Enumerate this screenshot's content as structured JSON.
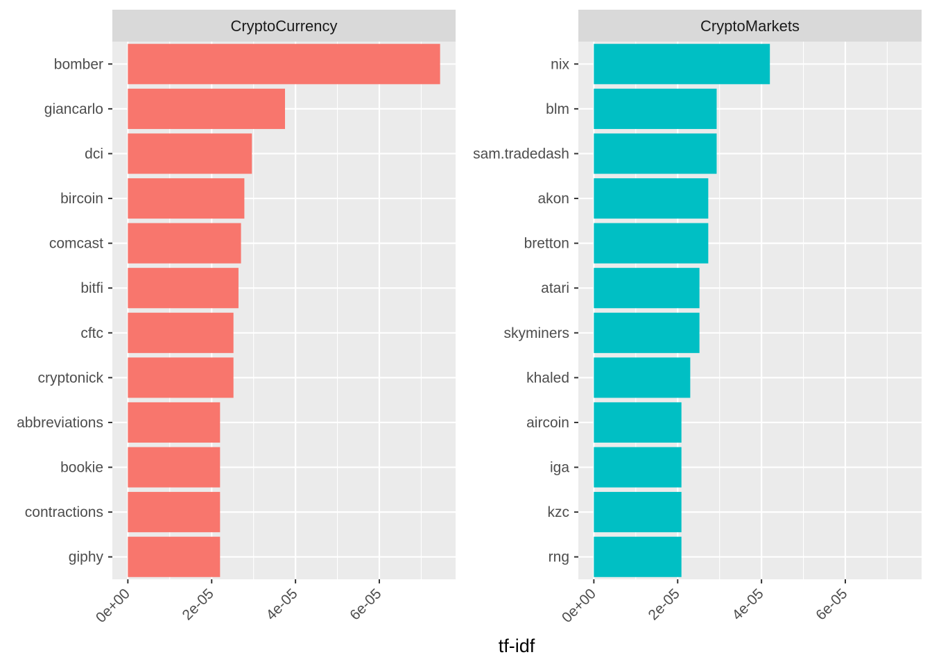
{
  "chart_data": {
    "type": "bar",
    "orientation": "horizontal",
    "xlabel": "tf-idf",
    "ylabel": "",
    "xlim": [
      -3.7e-06,
      7.82e-05
    ],
    "x_ticks": [
      {
        "value": 0,
        "label": "0e+00"
      },
      {
        "value": 2e-05,
        "label": "2e-05"
      },
      {
        "value": 4e-05,
        "label": "4e-05"
      },
      {
        "value": 6e-05,
        "label": "6e-05"
      }
    ],
    "grid": true,
    "legend": "none",
    "panels": [
      {
        "title": "CryptoCurrency",
        "color": "#F8766D",
        "categories": [
          "bomber",
          "giancarlo",
          "dci",
          "bircoin",
          "comcast",
          "bitfi",
          "cftc",
          "cryptonick",
          "abbreviations",
          "bookie",
          "contractions",
          "giphy"
        ],
        "values": [
          7.45e-05,
          3.75e-05,
          2.96e-05,
          2.78e-05,
          2.7e-05,
          2.64e-05,
          2.52e-05,
          2.52e-05,
          2.2e-05,
          2.2e-05,
          2.2e-05,
          2.2e-05
        ]
      },
      {
        "title": "CryptoMarkets",
        "color": "#00BFC4",
        "categories": [
          "nix",
          "blm",
          "sam.tradedash",
          "akon",
          "bretton",
          "atari",
          "skyminers",
          "khaled",
          "aircoin",
          "iga",
          "kzc",
          "rng"
        ],
        "values": [
          4.2e-05,
          2.93e-05,
          2.93e-05,
          2.73e-05,
          2.73e-05,
          2.52e-05,
          2.52e-05,
          2.3e-05,
          2.09e-05,
          2.09e-05,
          2.09e-05,
          2.09e-05
        ]
      }
    ]
  }
}
